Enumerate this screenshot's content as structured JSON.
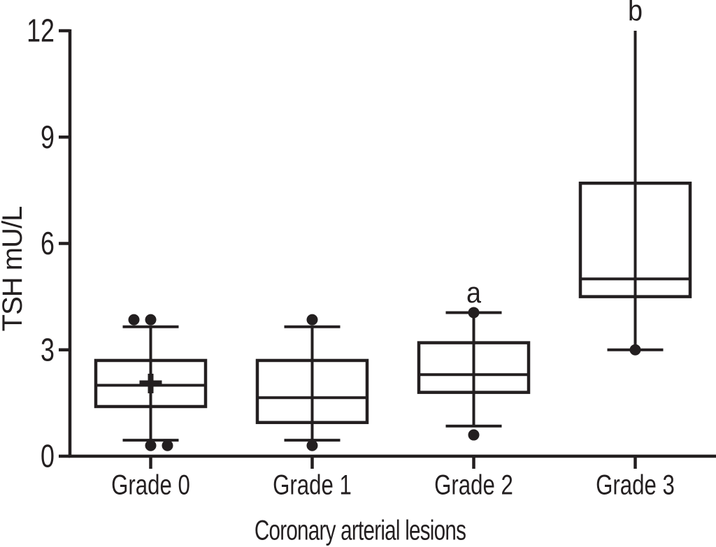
{
  "figure": {
    "background": "#ffffff",
    "ink": "#231f20"
  },
  "chart_data": {
    "type": "box",
    "title": "",
    "xlabel": "Coronary arterial lesions",
    "ylabel": "TSH mU/L",
    "ylim": [
      0,
      12
    ],
    "yticks": [
      0,
      3,
      6,
      9,
      12
    ],
    "categories": [
      "Grade 0",
      "Grade 1",
      "Grade 2",
      "Grade 3"
    ],
    "grid": false,
    "legend": null,
    "series": [
      {
        "category": "Grade 0",
        "whisker_low": 0.45,
        "q1": 1.4,
        "median": 2.0,
        "q3": 2.7,
        "whisker_high": 3.65,
        "mean": 2.05,
        "cap_high": true,
        "annotation": "",
        "points": [
          {
            "value": 3.85,
            "dx": -24
          },
          {
            "value": 3.85,
            "dx": 0
          },
          {
            "value": 0.3,
            "dx": 0
          },
          {
            "value": 0.3,
            "dx": 24
          }
        ]
      },
      {
        "category": "Grade 1",
        "whisker_low": 0.45,
        "q1": 0.95,
        "median": 1.65,
        "q3": 2.7,
        "whisker_high": 3.65,
        "mean": null,
        "cap_high": true,
        "annotation": "",
        "points": [
          {
            "value": 3.85,
            "dx": 0
          },
          {
            "value": 0.3,
            "dx": 0
          }
        ]
      },
      {
        "category": "Grade 2",
        "whisker_low": 0.85,
        "q1": 1.8,
        "median": 2.3,
        "q3": 3.2,
        "whisker_high": 4.05,
        "mean": null,
        "cap_high": true,
        "annotation": "a",
        "points": [
          {
            "value": 4.05,
            "dx": 0
          },
          {
            "value": 0.6,
            "dx": 0
          }
        ]
      },
      {
        "category": "Grade 3",
        "whisker_low": 3.0,
        "q1": 4.5,
        "median": 5.0,
        "q3": 7.7,
        "whisker_high": 12.0,
        "mean": null,
        "cap_high": false,
        "annotation": "b",
        "points": [
          {
            "value": 3.0,
            "dx": 0
          }
        ]
      }
    ]
  }
}
